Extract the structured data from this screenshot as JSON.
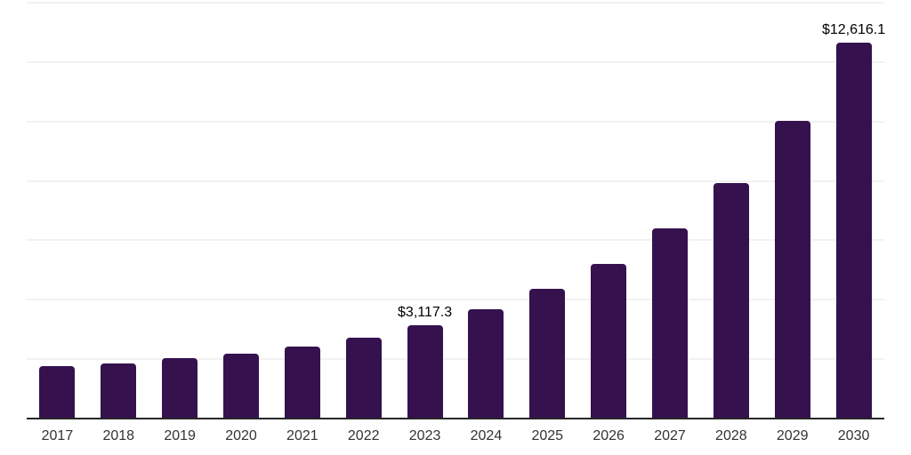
{
  "chart_data": {
    "type": "bar",
    "title": "",
    "xlabel": "",
    "ylabel": "",
    "categories": [
      "2017",
      "2018",
      "2019",
      "2020",
      "2021",
      "2022",
      "2023",
      "2024",
      "2025",
      "2026",
      "2027",
      "2028",
      "2029",
      "2030"
    ],
    "values": [
      1730,
      1820,
      2000,
      2150,
      2390,
      2690,
      3117.3,
      3640,
      4330,
      5180,
      6360,
      7900,
      10000,
      12616.1
    ],
    "data_labels": [
      "",
      "",
      "",
      "",
      "",
      "",
      "$3,117.3",
      "",
      "",
      "",
      "",
      "",
      "",
      "$12,616.1"
    ],
    "ylim": [
      0,
      14000
    ],
    "gridline_interval": 2000,
    "grid": "horizontal",
    "legend_position": "none",
    "bar_color": "#35114E"
  },
  "colors": {
    "bar": "#35114E",
    "gridline": "#F2F2F2",
    "axis_line": "#262626",
    "tick_label": "#333333",
    "data_label": "#000000",
    "background": "#FFFFFF"
  }
}
